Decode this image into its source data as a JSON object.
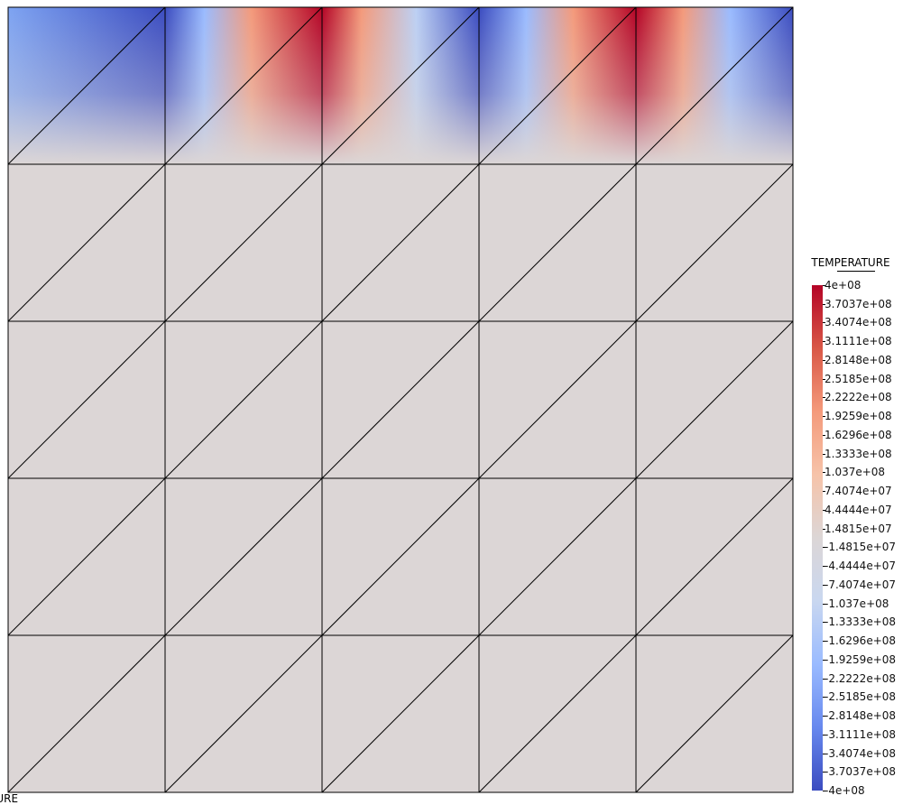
{
  "chart_data": {
    "type": "heatmap",
    "variable": "TEMPERATURE",
    "footer_text": "TURE",
    "mesh": {
      "columns": 5,
      "rows": 5,
      "element": "triangle",
      "diagonal": "bottom-left to top-right"
    },
    "value_range": [
      -400000000,
      400000000
    ],
    "colormap": [
      "#3b4cc0",
      "#6788ee",
      "#9abbff",
      "#c9d7f0",
      "#dcd6d6",
      "#f6c3a9",
      "#f49a7b",
      "#d95847",
      "#b40426"
    ],
    "nonzero_row": "top",
    "colorbar": {
      "title": "TEMPERATURE",
      "ticks": [
        "4e+08",
        "3.7037e+08",
        "3.4074e+08",
        "3.1111e+08",
        "2.8148e+08",
        "2.5185e+08",
        "2.2222e+08",
        "1.9259e+08",
        "1.6296e+08",
        "1.3333e+08",
        "1.037e+08",
        "7.4074e+07",
        "4.4444e+07",
        "1.4815e+07",
        "-1.4815e+07",
        "-4.4444e+07",
        "-7.4074e+07",
        "-1.037e+08",
        "-1.3333e+08",
        "-1.6296e+08",
        "-1.9259e+08",
        "-2.2222e+08",
        "-2.5185e+08",
        "-2.8148e+08",
        "-3.1111e+08",
        "-3.4074e+08",
        "-3.7037e+08",
        "-4e+08"
      ]
    }
  }
}
